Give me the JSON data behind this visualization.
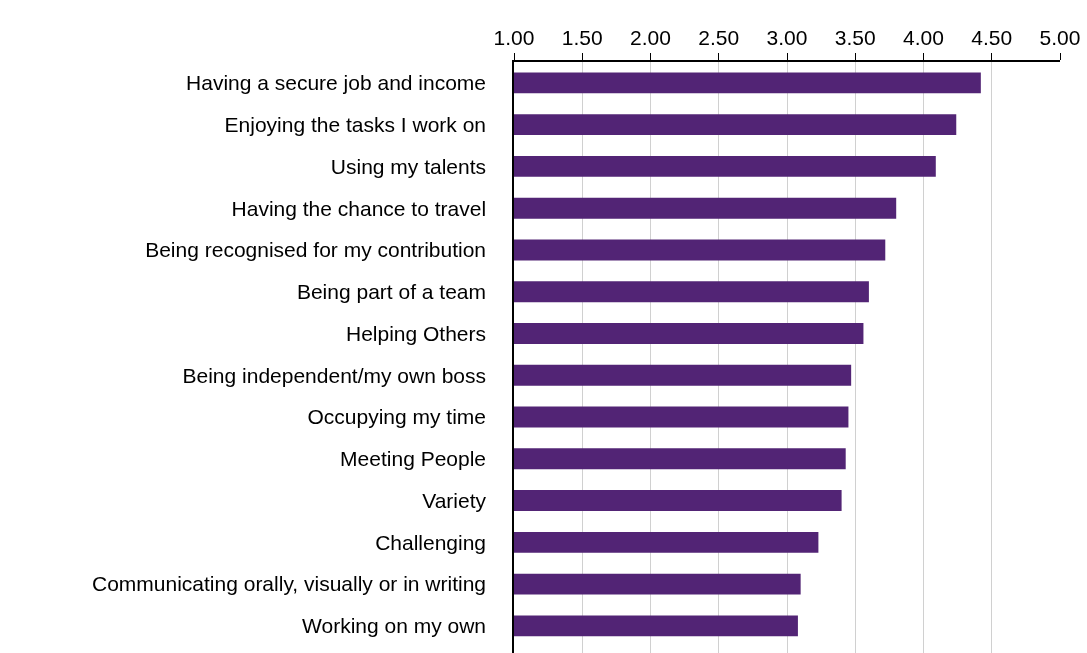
{
  "chart_data": {
    "type": "bar",
    "orientation": "horizontal",
    "categories": [
      "Having a secure job and income",
      "Enjoying the tasks I work on",
      "Using my talents",
      "Having the chance to travel",
      "Being recognised for my contribution",
      "Being part of a team",
      "Helping Others",
      "Being independent/my own boss",
      "Occupying my time",
      "Meeting People",
      "Variety",
      "Challenging",
      "Communicating orally, visually or in writing",
      "Working on my own"
    ],
    "values": [
      4.42,
      4.24,
      4.09,
      3.8,
      3.72,
      3.6,
      3.56,
      3.47,
      3.45,
      3.43,
      3.4,
      3.23,
      3.1,
      3.08
    ],
    "color": "#522475",
    "xlim": [
      1,
      5
    ],
    "xticks": [
      {
        "value": 1,
        "label": "1.00"
      },
      {
        "value": 1.5,
        "label": "1.50"
      },
      {
        "value": 2,
        "label": "2.00"
      },
      {
        "value": 2.5,
        "label": "2.50"
      },
      {
        "value": 3,
        "label": "3.00"
      },
      {
        "value": 3.5,
        "label": "3.50"
      },
      {
        "value": 4,
        "label": "4.00"
      },
      {
        "value": 4.5,
        "label": "4.50"
      },
      {
        "value": 5,
        "label": "5.00"
      }
    ],
    "grid": "x",
    "legend": false
  }
}
